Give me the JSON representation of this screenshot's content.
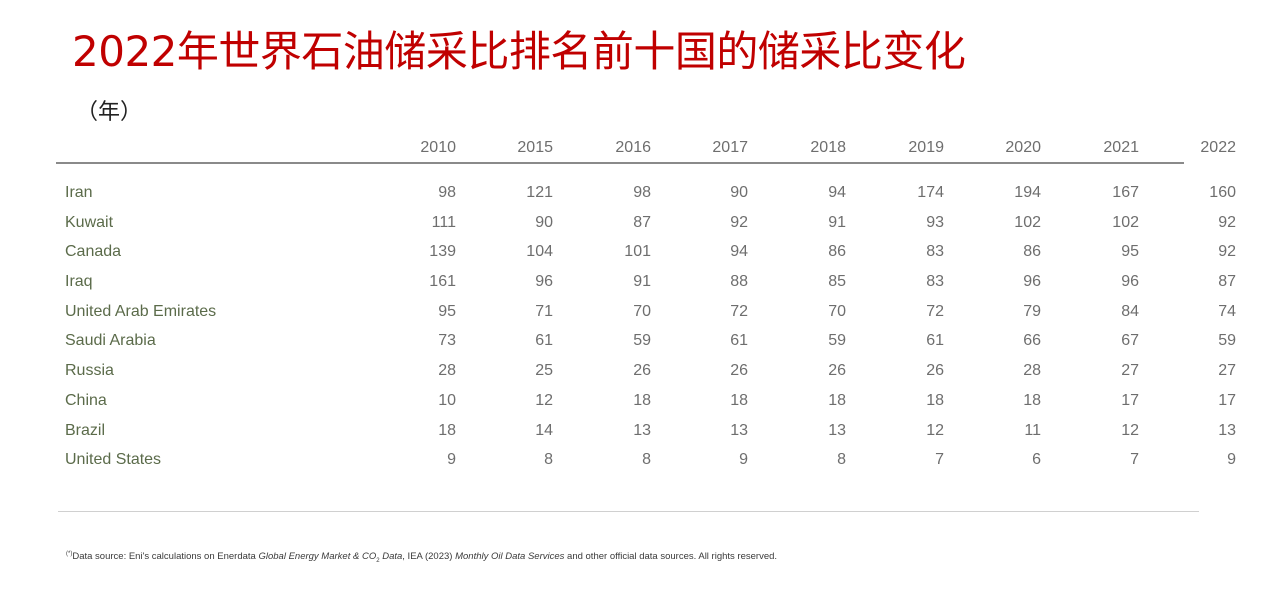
{
  "title": "2022年世界石油储采比排名前十国的储采比变化",
  "unit": "（年）",
  "table": {
    "columns": [
      "2010",
      "2015",
      "2016",
      "2017",
      "2018",
      "2019",
      "2020",
      "2021",
      "2022"
    ],
    "rows": [
      {
        "name": "Iran",
        "values": [
          "98",
          "121",
          "98",
          "90",
          "94",
          "174",
          "194",
          "167",
          "160"
        ]
      },
      {
        "name": "Kuwait",
        "values": [
          "111",
          "90",
          "87",
          "92",
          "91",
          "93",
          "102",
          "102",
          "92"
        ]
      },
      {
        "name": "Canada",
        "values": [
          "139",
          "104",
          "101",
          "94",
          "86",
          "83",
          "86",
          "95",
          "92"
        ]
      },
      {
        "name": "Iraq",
        "values": [
          "161",
          "96",
          "91",
          "88",
          "85",
          "83",
          "96",
          "96",
          "87"
        ]
      },
      {
        "name": "United Arab Emirates",
        "values": [
          "95",
          "71",
          "70",
          "72",
          "70",
          "72",
          "79",
          "84",
          "74"
        ]
      },
      {
        "name": "Saudi Arabia",
        "values": [
          "73",
          "61",
          "59",
          "61",
          "59",
          "61",
          "66",
          "67",
          "59"
        ]
      },
      {
        "name": "Russia",
        "values": [
          "28",
          "25",
          "26",
          "26",
          "26",
          "26",
          "28",
          "27",
          "27"
        ]
      },
      {
        "name": "China",
        "values": [
          "10",
          "12",
          "18",
          "18",
          "18",
          "18",
          "18",
          "17",
          "17"
        ]
      },
      {
        "name": "Brazil",
        "values": [
          "18",
          "14",
          "13",
          "13",
          "13",
          "12",
          "11",
          "12",
          "13"
        ]
      },
      {
        "name": "United States",
        "values": [
          "9",
          "8",
          "8",
          "9",
          "8",
          "7",
          "6",
          "7",
          "9"
        ]
      }
    ]
  },
  "footnote": {
    "marker": "(*)",
    "part1": "Data source: Eni's calculations on Enerdata ",
    "italic1": "Global Energy Market & CO",
    "sub": "2",
    "italic2": " Data",
    "part2": ", IEA (2023) ",
    "italic3": "Monthly Oil Data Services",
    "part3": " and other official data sources. All rights reserved."
  }
}
